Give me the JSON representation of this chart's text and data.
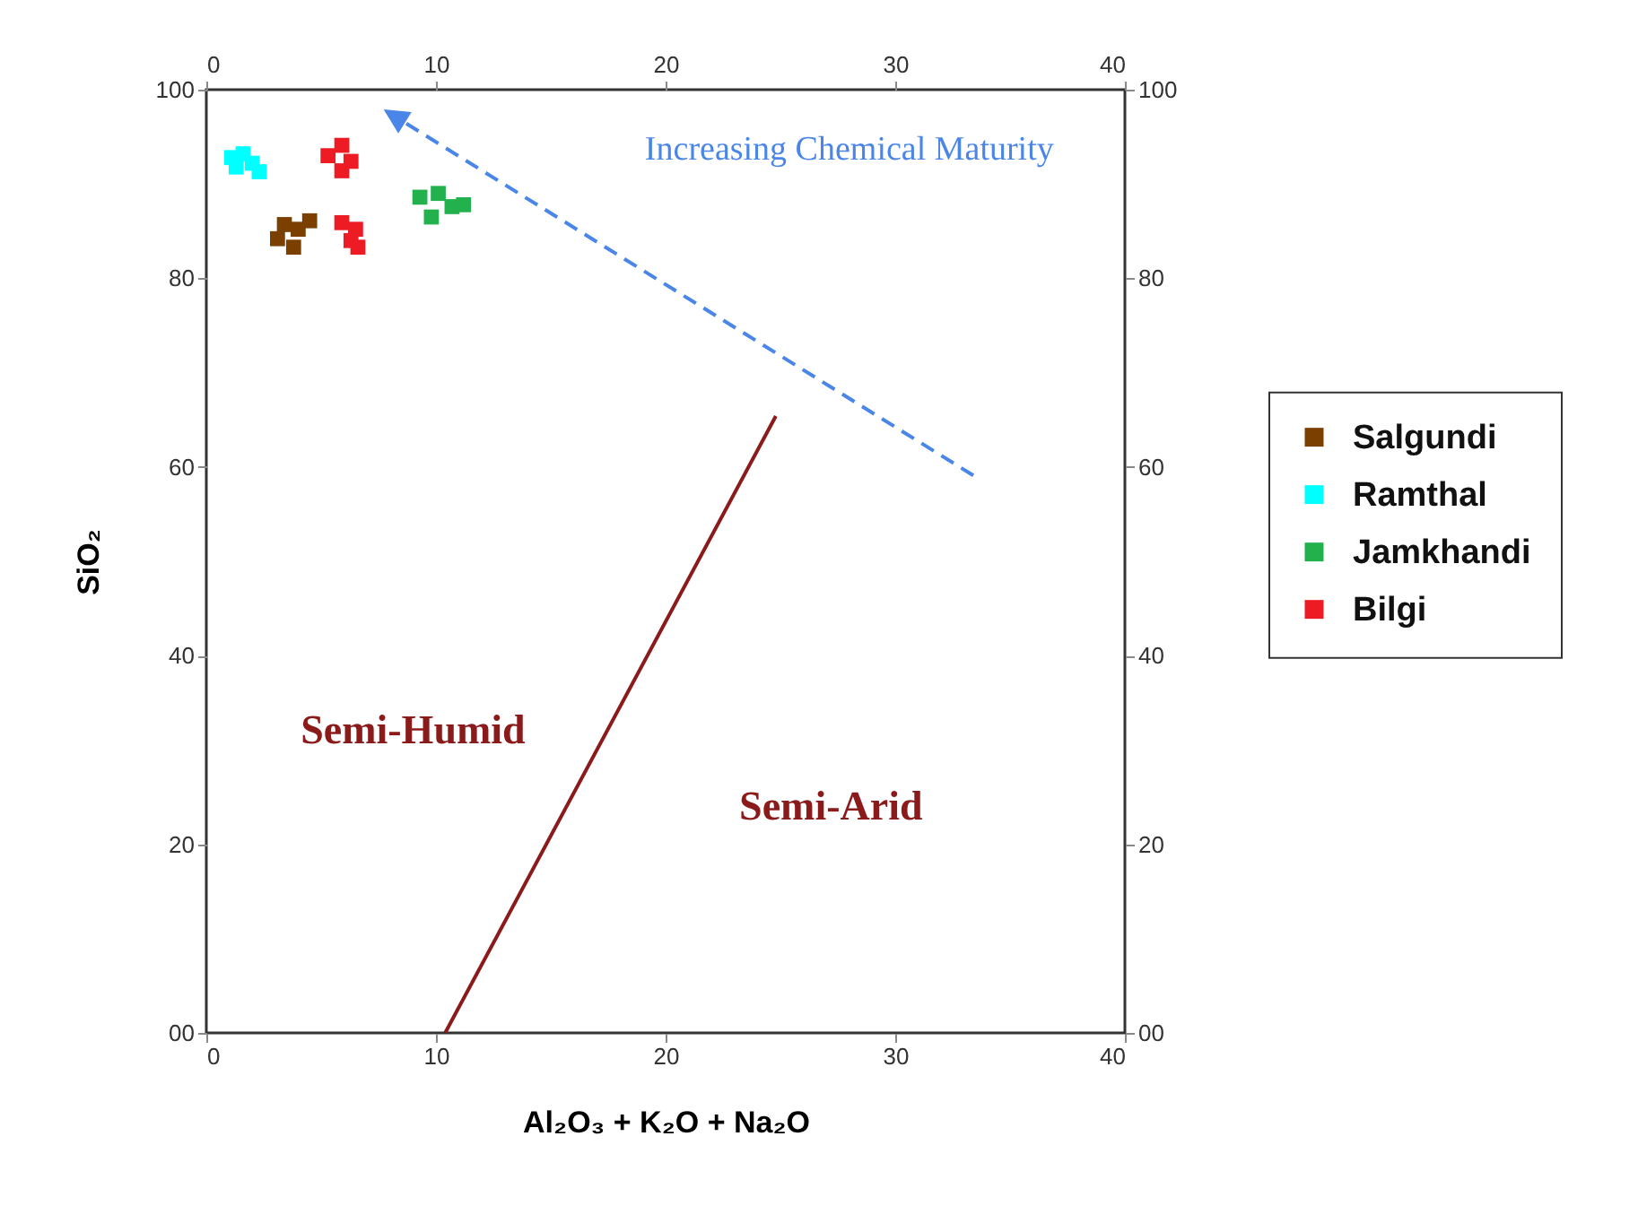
{
  "chart_data": {
    "type": "scatter",
    "xlabel": "Al₂O₃ + K₂O + Na₂O",
    "ylabel": "SiO₂",
    "xlim": [
      0,
      40
    ],
    "xticks": [
      0,
      10,
      20,
      30,
      40
    ],
    "x2lim": [
      0,
      40
    ],
    "x2ticks": [
      0,
      10,
      20,
      30,
      40
    ],
    "ylim": [
      0,
      100
    ],
    "yticks": [
      {
        "value": 0,
        "label": "00"
      },
      20,
      40,
      60,
      80,
      100
    ],
    "y2lim": [
      0,
      100
    ],
    "y2ticks": [
      {
        "value": 0,
        "label": "00"
      },
      20,
      40,
      60,
      80,
      100
    ],
    "marker": "square",
    "legend": "right",
    "grid": false,
    "series": [
      {
        "name": "Salgundi",
        "color": "#7b3f00",
        "x": [
          3.4,
          4.0,
          4.5,
          3.1,
          3.8
        ],
        "values": [
          85.7,
          85.2,
          86.1,
          84.2,
          83.3
        ]
      },
      {
        "name": "Ramthal",
        "color": "#00ffff",
        "x": [
          1.1,
          1.6,
          2.0,
          2.3,
          1.3
        ],
        "values": [
          92.8,
          93.2,
          92.2,
          91.3,
          91.8
        ]
      },
      {
        "name": "Jamkhandi",
        "color": "#22b14c",
        "x": [
          9.3,
          10.1,
          10.7,
          9.8,
          11.2
        ],
        "values": [
          88.6,
          89.0,
          87.6,
          86.5,
          87.8
        ]
      },
      {
        "name": "Bilgi",
        "color": "#ed1c24",
        "x": [
          5.3,
          5.9,
          6.3,
          5.9,
          5.9,
          6.5,
          6.6,
          6.3
        ],
        "values": [
          93.0,
          94.1,
          92.4,
          91.4,
          85.9,
          85.2,
          83.3,
          84.0
        ]
      },
      {
        "type": "line",
        "color": "#8b1a1a",
        "marker": "none",
        "x": [
          10.4,
          24.8
        ],
        "values": [
          0,
          65.4
        ]
      }
    ],
    "annotations": [
      "Semi-Humid",
      "Semi-Arid",
      "Increasing Chemical Maturity"
    ]
  }
}
